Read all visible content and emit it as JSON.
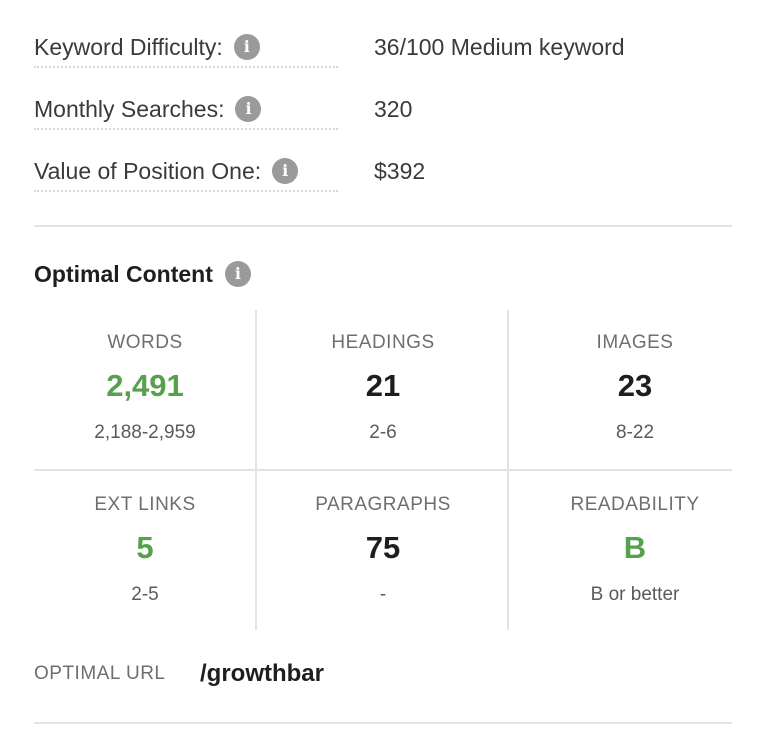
{
  "metrics": [
    {
      "label": "Keyword Difficulty:",
      "value": "36/100 Medium keyword"
    },
    {
      "label": "Monthly Searches:",
      "value": "320"
    },
    {
      "label": "Value of Position One:",
      "value": "$392"
    }
  ],
  "info_icon_glyph": "i",
  "optimal_content": {
    "title": "Optimal Content",
    "cells": [
      {
        "label": "WORDS",
        "value": "2,491",
        "range": "2,188-2,959",
        "status": "good"
      },
      {
        "label": "HEADINGS",
        "value": "21",
        "range": "2-6",
        "status": "neutral"
      },
      {
        "label": "IMAGES",
        "value": "23",
        "range": "8-22",
        "status": "neutral"
      },
      {
        "label": "EXT LINKS",
        "value": "5",
        "range": "2-5",
        "status": "good"
      },
      {
        "label": "PARAGRAPHS",
        "value": "75",
        "range": "-",
        "status": "neutral"
      },
      {
        "label": "READABILITY",
        "value": "B",
        "range": "B or better",
        "status": "good"
      }
    ]
  },
  "optimal_url": {
    "label": "OPTIMAL URL",
    "value": "/growthbar"
  },
  "colors": {
    "good": "#56a14c",
    "neutral": "#1e1e1e",
    "info_icon": "#9a9a9a",
    "divider": "#e2e2e2"
  }
}
